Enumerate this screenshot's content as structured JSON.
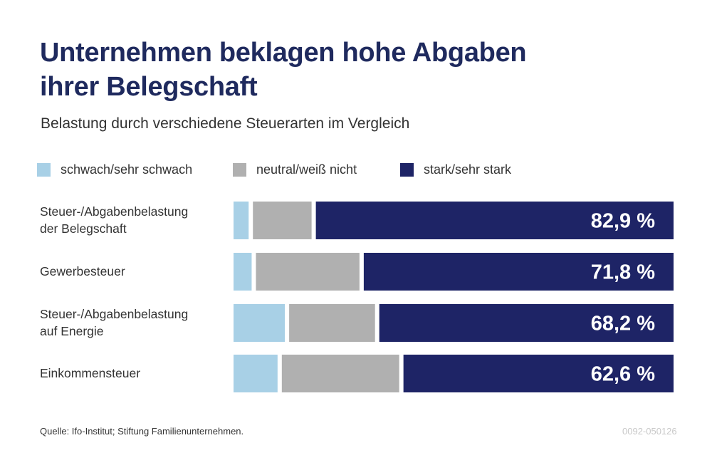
{
  "chart_data": {
    "type": "bar",
    "orientation": "horizontal",
    "stacked": true,
    "title": "Unternehmen beklagen hohe Abgaben ihrer Belegschaft",
    "subtitle": "Belastung durch verschiedene Steuerarten im Vergleich",
    "xlabel": "",
    "ylabel": "",
    "xlim": [
      0,
      100
    ],
    "unit": "%",
    "grid": false,
    "legend_position": "top-left",
    "categories": [
      [
        "Steuer-/Abgabenbelastung",
        "der Belegschaft"
      ],
      [
        "Gewerbesteuer"
      ],
      [
        "Steuer-/Abgabenbelastung",
        "auf Energie"
      ],
      [
        "Einkommensteuer"
      ]
    ],
    "series": [
      {
        "name": "schwach/sehr schwach",
        "color": "#a8d0e6",
        "values": [
          3.5,
          4.2,
          11.9,
          10.2
        ]
      },
      {
        "name": "neutral/weiß nicht",
        "color": "#b0b0b0",
        "values": [
          13.6,
          24.0,
          19.9,
          27.2
        ]
      },
      {
        "name": "stark/sehr stark",
        "color": "#1e2466",
        "values": [
          82.9,
          71.8,
          68.2,
          62.6
        ]
      }
    ],
    "data_labels": [
      "82,9 %",
      "71,8 %",
      "68,2 %",
      "62,6 %"
    ],
    "labeled_series": "stark/sehr stark"
  },
  "header": {
    "title_line1": "Unternehmen beklagen hohe Abgaben",
    "title_line2": "ihrer Belegschaft",
    "subtitle": "Belastung durch verschiedene Steuerarten im Vergleich"
  },
  "legend": [
    {
      "label": "schwach/sehr schwach",
      "color": "#a8d0e6"
    },
    {
      "label": "neutral/weiß nicht",
      "color": "#b0b0b0"
    },
    {
      "label": "stark/sehr stark",
      "color": "#1e2466"
    }
  ],
  "footer": {
    "source": "Quelle: Ifo-Institut; Stiftung Familienunternehmen.",
    "code": "0092-050126"
  }
}
